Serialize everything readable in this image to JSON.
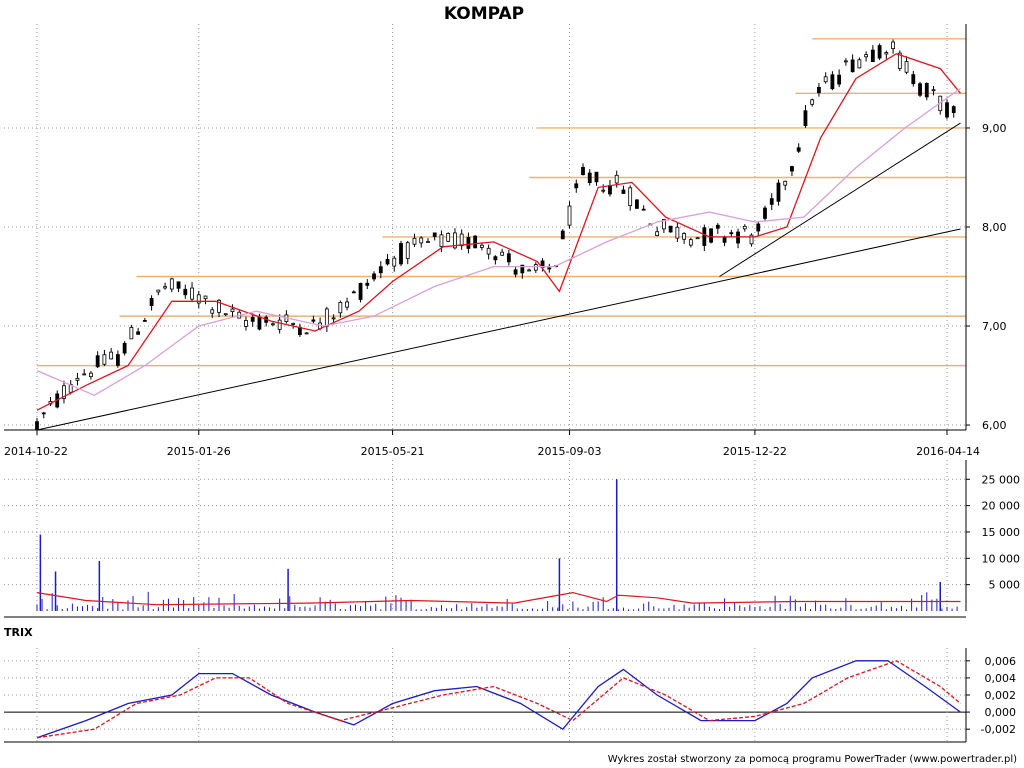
{
  "chart_data": [
    {
      "type": "candlestick",
      "title": "KOMPAP",
      "x_ticks": [
        "2014-10-22",
        "2015-01-26",
        "2015-05-21",
        "2015-09-03",
        "2015-12-22",
        "2016-04-14"
      ],
      "y_ticks": [
        "6,00",
        "7,00",
        "8,00",
        "9,00"
      ],
      "ylim": [
        5.95,
        10.05
      ],
      "grid": true,
      "price_anchors": [
        {
          "date": "2014-10-22",
          "value": 6.0
        },
        {
          "date": "2014-11-15",
          "value": 6.5
        },
        {
          "date": "2014-12-10",
          "value": 6.7
        },
        {
          "date": "2015-01-05",
          "value": 7.4
        },
        {
          "date": "2015-01-26",
          "value": 7.3
        },
        {
          "date": "2015-02-20",
          "value": 7.05
        },
        {
          "date": "2015-03-15",
          "value": 7.05
        },
        {
          "date": "2015-04-05",
          "value": 7.0
        },
        {
          "date": "2015-04-25",
          "value": 7.25
        },
        {
          "date": "2015-05-21",
          "value": 7.7
        },
        {
          "date": "2015-06-15",
          "value": 7.85
        },
        {
          "date": "2015-07-15",
          "value": 7.85
        },
        {
          "date": "2015-08-10",
          "value": 7.5
        },
        {
          "date": "2015-08-25",
          "value": 7.6
        },
        {
          "date": "2015-09-10",
          "value": 8.5
        },
        {
          "date": "2015-10-05",
          "value": 8.4
        },
        {
          "date": "2015-10-25",
          "value": 8.0
        },
        {
          "date": "2015-11-20",
          "value": 7.9
        },
        {
          "date": "2015-12-10",
          "value": 7.95
        },
        {
          "date": "2015-12-22",
          "value": 7.9
        },
        {
          "date": "2016-01-10",
          "value": 8.5
        },
        {
          "date": "2016-01-25",
          "value": 9.3
        },
        {
          "date": "2016-02-20",
          "value": 9.7
        },
        {
          "date": "2016-03-10",
          "value": 9.85
        },
        {
          "date": "2016-03-28",
          "value": 9.45
        },
        {
          "date": "2016-04-20",
          "value": 9.1
        }
      ],
      "series": [
        {
          "color": "#e0141e",
          "values": [
            {
              "date": "2014-10-22",
              "value": 6.15
            },
            {
              "date": "2014-11-20",
              "value": 6.4
            },
            {
              "date": "2014-12-15",
              "value": 6.6
            },
            {
              "date": "2015-01-10",
              "value": 7.25
            },
            {
              "date": "2015-02-05",
              "value": 7.25
            },
            {
              "date": "2015-03-10",
              "value": 7.05
            },
            {
              "date": "2015-04-05",
              "value": 6.95
            },
            {
              "date": "2015-05-01",
              "value": 7.15
            },
            {
              "date": "2015-05-21",
              "value": 7.45
            },
            {
              "date": "2015-06-20",
              "value": 7.8
            },
            {
              "date": "2015-07-20",
              "value": 7.85
            },
            {
              "date": "2015-08-15",
              "value": 7.65
            },
            {
              "date": "2015-08-28",
              "value": 7.35
            },
            {
              "date": "2015-09-20",
              "value": 8.4
            },
            {
              "date": "2015-10-10",
              "value": 8.45
            },
            {
              "date": "2015-10-30",
              "value": 8.1
            },
            {
              "date": "2015-11-25",
              "value": 7.9
            },
            {
              "date": "2015-12-22",
              "value": 7.9
            },
            {
              "date": "2016-01-10",
              "value": 8.0
            },
            {
              "date": "2016-01-30",
              "value": 8.9
            },
            {
              "date": "2016-02-20",
              "value": 9.5
            },
            {
              "date": "2016-03-15",
              "value": 9.75
            },
            {
              "date": "2016-04-10",
              "value": 9.6
            },
            {
              "date": "2016-04-22",
              "value": 9.35
            }
          ]
        },
        {
          "color": "#d8a0d8",
          "values": [
            {
              "date": "2014-10-22",
              "value": 6.55
            },
            {
              "date": "2014-11-25",
              "value": 6.3
            },
            {
              "date": "2014-12-25",
              "value": 6.6
            },
            {
              "date": "2015-01-26",
              "value": 7.0
            },
            {
              "date": "2015-03-01",
              "value": 7.15
            },
            {
              "date": "2015-04-10",
              "value": 7.0
            },
            {
              "date": "2015-05-10",
              "value": 7.1
            },
            {
              "date": "2015-06-15",
              "value": 7.4
            },
            {
              "date": "2015-07-20",
              "value": 7.6
            },
            {
              "date": "2015-08-25",
              "value": 7.6
            },
            {
              "date": "2015-09-25",
              "value": 7.85
            },
            {
              "date": "2015-10-25",
              "value": 8.05
            },
            {
              "date": "2015-11-25",
              "value": 8.15
            },
            {
              "date": "2015-12-22",
              "value": 8.05
            },
            {
              "date": "2016-01-20",
              "value": 8.1
            },
            {
              "date": "2016-02-20",
              "value": 8.6
            },
            {
              "date": "2016-03-20",
              "value": 9.0
            },
            {
              "date": "2016-04-22",
              "value": 9.4
            }
          ]
        }
      ],
      "horizontal_lines": [
        {
          "from": "2014-10-22",
          "value": 6.6
        },
        {
          "from": "2014-12-10",
          "value": 7.1
        },
        {
          "from": "2014-12-20",
          "value": 7.5
        },
        {
          "from": "2015-05-15",
          "value": 7.9
        },
        {
          "from": "2015-08-10",
          "value": 8.5
        },
        {
          "from": "2015-08-15",
          "value": 9.0
        },
        {
          "from": "2016-01-15",
          "value": 9.35
        },
        {
          "from": "2016-01-25",
          "value": 9.9
        }
      ],
      "trend_lines": [
        {
          "from": {
            "date": "2014-10-22",
            "value": 5.95
          },
          "to": {
            "date": "2016-04-22",
            "value": 7.98
          }
        },
        {
          "from": {
            "date": "2015-12-01",
            "value": 7.5
          },
          "to": {
            "date": "2016-04-22",
            "value": 9.05
          }
        }
      ],
      "colors": {
        "up": "#ffffff",
        "down": "#000000",
        "hline": "#f0b070",
        "trend": "#000000"
      }
    },
    {
      "type": "bar",
      "y_ticks": [
        "5 000",
        "10 000",
        "15 000",
        "20 000",
        "25 000"
      ],
      "ylim": [
        0,
        26000
      ],
      "grid": true,
      "volume_peaks": [
        {
          "date": "2014-10-24",
          "value": 14500
        },
        {
          "date": "2014-11-02",
          "value": 7500
        },
        {
          "date": "2014-11-28",
          "value": 9500
        },
        {
          "date": "2015-03-20",
          "value": 8000
        },
        {
          "date": "2015-08-28",
          "value": 10000
        },
        {
          "date": "2015-10-01",
          "value": 25000
        },
        {
          "date": "2016-04-10",
          "value": 5500
        }
      ],
      "series": [
        {
          "color": "#1a1ac8",
          "values": "bars"
        },
        {
          "color": "#e0141e",
          "values": [
            {
              "date": "2014-10-22",
              "value": 3500
            },
            {
              "date": "2014-11-20",
              "value": 2000
            },
            {
              "date": "2015-01-01",
              "value": 1200
            },
            {
              "date": "2015-04-01",
              "value": 1500
            },
            {
              "date": "2015-06-01",
              "value": 2000
            },
            {
              "date": "2015-08-01",
              "value": 1500
            },
            {
              "date": "2015-09-05",
              "value": 3500
            },
            {
              "date": "2015-09-25",
              "value": 1800
            },
            {
              "date": "2015-10-02",
              "value": 3000
            },
            {
              "date": "2015-10-25",
              "value": 2500
            },
            {
              "date": "2015-11-15",
              "value": 1500
            },
            {
              "date": "2016-01-15",
              "value": 1800
            },
            {
              "date": "2016-04-22",
              "value": 1800
            }
          ]
        }
      ]
    },
    {
      "type": "line",
      "title": "TRIX",
      "y_ticks": [
        "-0,002",
        "0,000",
        "0,002",
        "0,004",
        "0,006"
      ],
      "ylim": [
        -0.0035,
        0.0075
      ],
      "grid": true,
      "series": [
        {
          "color": "#1a1ac8",
          "values": [
            {
              "date": "2014-10-22",
              "value": -0.003
            },
            {
              "date": "2014-11-20",
              "value": -0.001
            },
            {
              "date": "2014-12-15",
              "value": 0.001
            },
            {
              "date": "2015-01-10",
              "value": 0.002
            },
            {
              "date": "2015-01-26",
              "value": 0.0045
            },
            {
              "date": "2015-02-15",
              "value": 0.0045
            },
            {
              "date": "2015-03-10",
              "value": 0.002
            },
            {
              "date": "2015-04-05",
              "value": 0.0
            },
            {
              "date": "2015-04-28",
              "value": -0.0015
            },
            {
              "date": "2015-05-21",
              "value": 0.001
            },
            {
              "date": "2015-06-15",
              "value": 0.0025
            },
            {
              "date": "2015-07-10",
              "value": 0.003
            },
            {
              "date": "2015-08-05",
              "value": 0.001
            },
            {
              "date": "2015-08-30",
              "value": -0.002
            },
            {
              "date": "2015-09-20",
              "value": 0.003
            },
            {
              "date": "2015-10-05",
              "value": 0.005
            },
            {
              "date": "2015-10-25",
              "value": 0.002
            },
            {
              "date": "2015-11-20",
              "value": -0.001
            },
            {
              "date": "2015-12-22",
              "value": -0.001
            },
            {
              "date": "2016-01-10",
              "value": 0.001
            },
            {
              "date": "2016-01-25",
              "value": 0.004
            },
            {
              "date": "2016-02-20",
              "value": 0.006
            },
            {
              "date": "2016-03-10",
              "value": 0.006
            },
            {
              "date": "2016-04-01",
              "value": 0.003
            },
            {
              "date": "2016-04-22",
              "value": 0.0
            }
          ]
        },
        {
          "color": "#e0141e",
          "values": [
            {
              "date": "2014-10-22",
              "value": -0.003
            },
            {
              "date": "2014-11-25",
              "value": -0.002
            },
            {
              "date": "2014-12-20",
              "value": 0.001
            },
            {
              "date": "2015-01-15",
              "value": 0.002
            },
            {
              "date": "2015-02-05",
              "value": 0.004
            },
            {
              "date": "2015-02-25",
              "value": 0.004
            },
            {
              "date": "2015-03-20",
              "value": 0.001
            },
            {
              "date": "2015-04-20",
              "value": -0.001
            },
            {
              "date": "2015-05-21",
              "value": 0.0005
            },
            {
              "date": "2015-06-20",
              "value": 0.002
            },
            {
              "date": "2015-07-20",
              "value": 0.003
            },
            {
              "date": "2015-08-15",
              "value": 0.001
            },
            {
              "date": "2015-09-05",
              "value": -0.001
            },
            {
              "date": "2015-10-05",
              "value": 0.004
            },
            {
              "date": "2015-10-30",
              "value": 0.002
            },
            {
              "date": "2015-11-25",
              "value": -0.001
            },
            {
              "date": "2015-12-22",
              "value": -0.0005
            },
            {
              "date": "2016-01-20",
              "value": 0.001
            },
            {
              "date": "2016-02-15",
              "value": 0.004
            },
            {
              "date": "2016-03-15",
              "value": 0.006
            },
            {
              "date": "2016-04-10",
              "value": 0.003
            },
            {
              "date": "2016-04-22",
              "value": 0.001
            }
          ]
        }
      ]
    }
  ],
  "footer": "Wykres został stworzony za pomocą programu PowerTrader (www.powertrader.pl)"
}
